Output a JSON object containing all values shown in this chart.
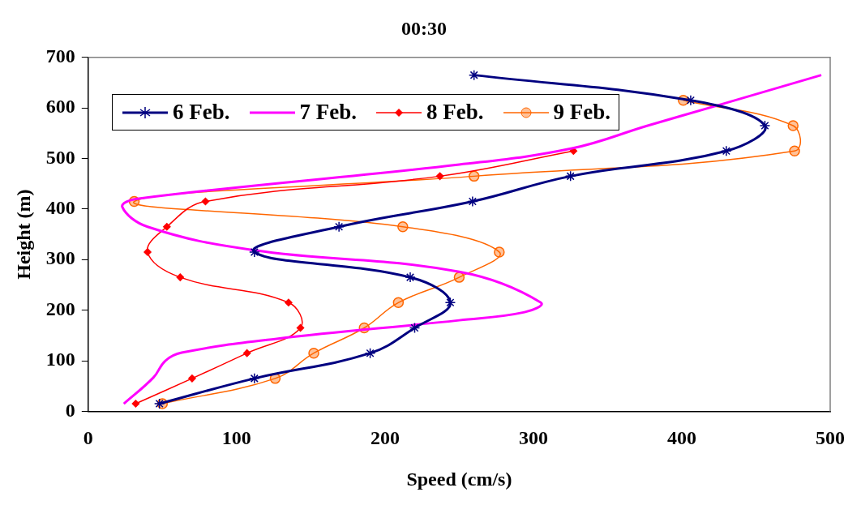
{
  "chart_data": {
    "type": "line",
    "title": "00:30",
    "xlabel": "Speed (cm/s)",
    "ylabel": "Height (m)",
    "xlim": [
      0,
      500
    ],
    "xticks": [
      0,
      100,
      200,
      300,
      400,
      500
    ],
    "ylim": [
      0,
      700
    ],
    "yticks": [
      0,
      100,
      200,
      300,
      400,
      500,
      600,
      700
    ],
    "grid": false,
    "legend": "top left",
    "series": [
      {
        "name": "6 Feb.",
        "color": "#000080",
        "marker": "cross",
        "x": [
          48,
          112,
          190,
          220,
          244,
          217,
          112,
          169,
          259,
          325,
          430,
          456,
          406,
          260
        ],
        "values": [
          15,
          65,
          115,
          165,
          215,
          265,
          315,
          365,
          415,
          465,
          515,
          565,
          615,
          665
        ]
      },
      {
        "name": "7 Feb.",
        "color": "#ff00ff",
        "marker": "none",
        "x": [
          24,
          44,
          52,
          63,
          126,
          250,
          294,
          305,
          250,
          111,
          40,
          23,
          32,
          250,
          326,
          377,
          423,
          494
        ],
        "values": [
          15,
          67,
          100,
          116,
          143,
          180,
          196,
          215,
          276,
          319,
          365,
          404,
          420,
          488,
          520,
          565,
          604,
          665
        ]
      },
      {
        "name": "8 Feb.",
        "color": "#ff0000",
        "marker": "diamond",
        "x": [
          32,
          70,
          107,
          143,
          135,
          62,
          40,
          53,
          79,
          237,
          327
        ],
        "values": [
          15,
          65,
          115,
          165,
          215,
          265,
          315,
          365,
          415,
          465,
          515
        ]
      },
      {
        "name": "9 Feb.",
        "color": "#ff6600",
        "marker": "circle",
        "x": [
          50,
          126,
          152,
          186,
          209,
          250,
          277,
          212,
          31,
          260,
          476,
          475,
          401
        ],
        "values": [
          15,
          65,
          115,
          165,
          215,
          265,
          315,
          365,
          415,
          465,
          515,
          565,
          615
        ]
      }
    ]
  }
}
